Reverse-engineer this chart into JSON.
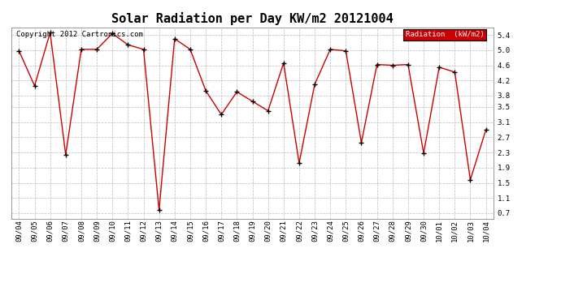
{
  "title": "Solar Radiation per Day KW/m2 20121004",
  "copyright": "Copyright 2012 Cartronics.com",
  "legend_label": "Radiation  (kW/m2)",
  "dates": [
    "09/04",
    "09/05",
    "09/06",
    "09/07",
    "09/08",
    "09/09",
    "09/10",
    "09/11",
    "09/12",
    "09/13",
    "09/14",
    "09/15",
    "09/16",
    "09/17",
    "09/18",
    "09/19",
    "09/20",
    "09/21",
    "09/22",
    "09/23",
    "09/24",
    "09/25",
    "09/26",
    "09/27",
    "09/28",
    "09/29",
    "09/30",
    "10/01",
    "10/02",
    "10/03",
    "10/04"
  ],
  "values": [
    4.98,
    4.06,
    5.46,
    2.24,
    5.02,
    5.02,
    5.44,
    5.14,
    5.02,
    0.78,
    5.3,
    5.02,
    3.93,
    3.3,
    3.9,
    3.65,
    3.4,
    4.66,
    2.02,
    4.1,
    5.02,
    4.98,
    2.56,
    4.62,
    4.6,
    4.62,
    2.28,
    4.55,
    4.42,
    1.58,
    2.9
  ],
  "yticks": [
    0.7,
    1.1,
    1.5,
    1.9,
    2.3,
    2.7,
    3.1,
    3.5,
    3.8,
    4.2,
    4.6,
    5.0,
    5.4
  ],
  "ylim": [
    0.55,
    5.6
  ],
  "line_color": "#cc0000",
  "marker_color": "#000000",
  "bg_color": "#ffffff",
  "plot_bg_color": "#ffffff",
  "grid_color": "#bbbbbb",
  "legend_bg": "#cc0000",
  "legend_text_color": "#ffffff",
  "title_fontsize": 11,
  "tick_fontsize": 6.5,
  "copyright_fontsize": 6.5
}
